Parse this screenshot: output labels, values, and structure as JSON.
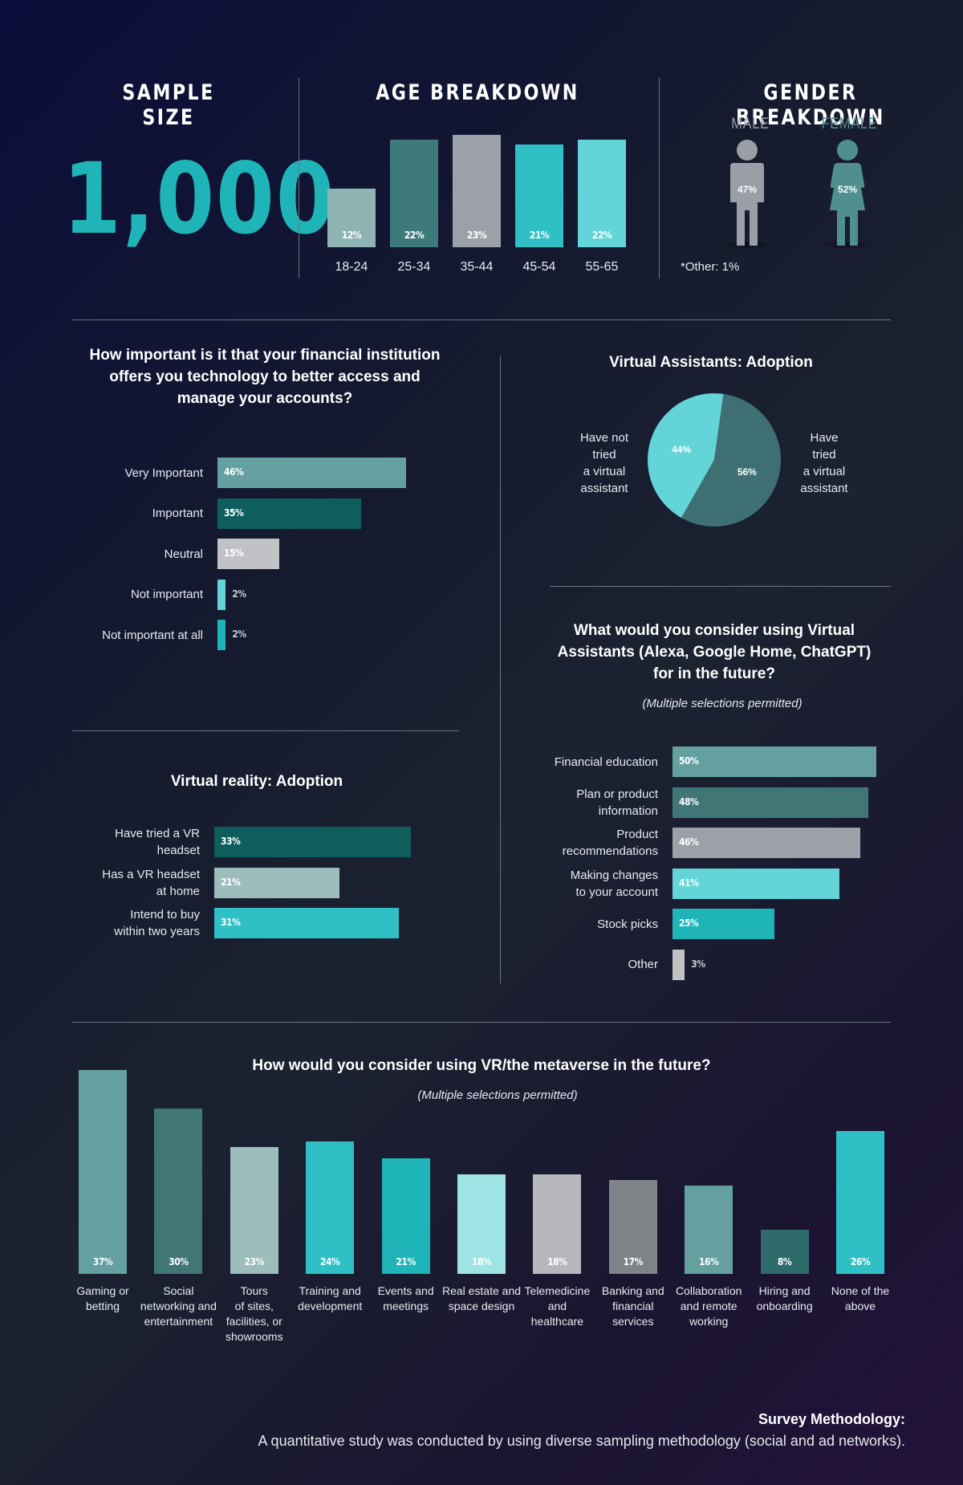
{
  "sample": {
    "header": "SAMPLE SIZE",
    "value": "1,000"
  },
  "age": {
    "header": "AGE BREAKDOWN",
    "chart_data": {
      "type": "bar",
      "categories": [
        "18-24",
        "25-34",
        "35-44",
        "45-54",
        "55-65"
      ],
      "values": [
        12,
        22,
        23,
        21,
        22
      ],
      "labels": [
        "12%",
        "22%",
        "23%",
        "21%",
        "22%"
      ],
      "colors": [
        "#8fb4b4",
        "#3f7a7a",
        "#9ca0a8",
        "#2fc0c6",
        "#63d4d8"
      ]
    }
  },
  "gender": {
    "header": "GENDER BREAKDOWN",
    "male_label": "MALE",
    "male_value": "47%",
    "female_label": "FEMALE",
    "female_value": "52%",
    "other": "*Other: 1%",
    "male_color": "#9a9ea6",
    "female_color": "#4f8f8f"
  },
  "importance": {
    "title_lines": [
      "How important is it that your financial institution",
      "offers you technology to better access and",
      "manage your accounts?"
    ],
    "chart_data": {
      "type": "bar",
      "categories": [
        "Very Important",
        "Important",
        "Neutral",
        "Not important",
        "Not important at all"
      ],
      "values": [
        46,
        35,
        15,
        2,
        2
      ],
      "labels": [
        "46%",
        "35%",
        "15%",
        "2%",
        "2%"
      ],
      "colors": [
        "#64a0a0",
        "#0e5e5e",
        "#c0c2c6",
        "#63d4d8",
        "#1fb5b8"
      ]
    }
  },
  "va_adoption": {
    "title": "Virtual Assistants: Adoption",
    "left_label": [
      "Have not",
      "tried",
      "a virtual",
      "assistant"
    ],
    "right_label": [
      "Have",
      "tried",
      "a virtual",
      "assistant"
    ],
    "chart_data": {
      "type": "pie",
      "categories": [
        "Have not tried a virtual assistant",
        "Have tried a virtual assistant"
      ],
      "values": [
        44,
        56
      ],
      "labels": [
        "44%",
        "56%"
      ],
      "colors": [
        "#63d4d8",
        "#3e6f72"
      ]
    }
  },
  "va_future": {
    "title_lines": [
      "What would you consider using Virtual",
      "Assistants (Alexa, Google Home, ChatGPT)",
      "for in the future?"
    ],
    "subtitle": "(Multiple selections permitted)",
    "chart_data": {
      "type": "bar",
      "categories": [
        [
          "Financial education"
        ],
        [
          "Plan or product",
          "information"
        ],
        [
          "Product",
          "recommendations"
        ],
        [
          "Making changes",
          "to your account"
        ],
        [
          "Stock picks"
        ],
        [
          "Other"
        ]
      ],
      "values": [
        50,
        48,
        46,
        41,
        25,
        3
      ],
      "labels": [
        "50%",
        "48%",
        "46%",
        "41%",
        "25%",
        "3%"
      ],
      "colors": [
        "#64a0a0",
        "#417676",
        "#9ca0a8",
        "#63d4d8",
        "#1fb5b8",
        "#c0c2c6"
      ]
    }
  },
  "vr_adoption": {
    "title": "Virtual reality: Adoption",
    "chart_data": {
      "type": "bar",
      "categories": [
        [
          "Have tried a VR",
          "headset"
        ],
        [
          "Has a VR headset",
          "at home"
        ],
        [
          "Intend to buy",
          "within two years"
        ]
      ],
      "values": [
        33,
        21,
        31
      ],
      "labels": [
        "33%",
        "21%",
        "31%"
      ],
      "colors": [
        "#0e5e5e",
        "#9dbcbc",
        "#2fc0c6"
      ]
    }
  },
  "vr_future": {
    "title": "How would you consider using VR/the metaverse in the future?",
    "subtitle": "(Multiple selections permitted)",
    "chart_data": {
      "type": "bar",
      "categories": [
        [
          "Gaming or",
          "betting"
        ],
        [
          "Social",
          "networking and",
          "entertainment"
        ],
        [
          "Tours",
          "of sites,",
          "facilities, or",
          "showrooms"
        ],
        [
          "Training and",
          "development"
        ],
        [
          "Events and",
          "meetings"
        ],
        [
          "Real estate and",
          "space design"
        ],
        [
          "Telemedicine",
          "and",
          "healthcare"
        ],
        [
          "Banking and",
          "financial",
          "services"
        ],
        [
          "Collaboration",
          "and remote",
          "working"
        ],
        [
          "Hiring and",
          "onboarding"
        ],
        [
          "None of the",
          "above"
        ]
      ],
      "values": [
        37,
        30,
        23,
        24,
        21,
        18,
        18,
        17,
        16,
        8,
        26
      ],
      "labels": [
        "37%",
        "30%",
        "23%",
        "24%",
        "21%",
        "18%",
        "18%",
        "17%",
        "16%",
        "8%",
        "26%"
      ],
      "colors": [
        "#64a0a0",
        "#417676",
        "#9dbcbc",
        "#2fc0c6",
        "#1fb5b8",
        "#9ee4e4",
        "#b6b8bd",
        "#7f8388",
        "#64a0a0",
        "#2f6b6b",
        "#2fc0c6"
      ]
    }
  },
  "methodology": {
    "title": "Survey Methodology:",
    "text": "A quantitative study was conducted by using diverse sampling methodology (social and ad networks)."
  }
}
